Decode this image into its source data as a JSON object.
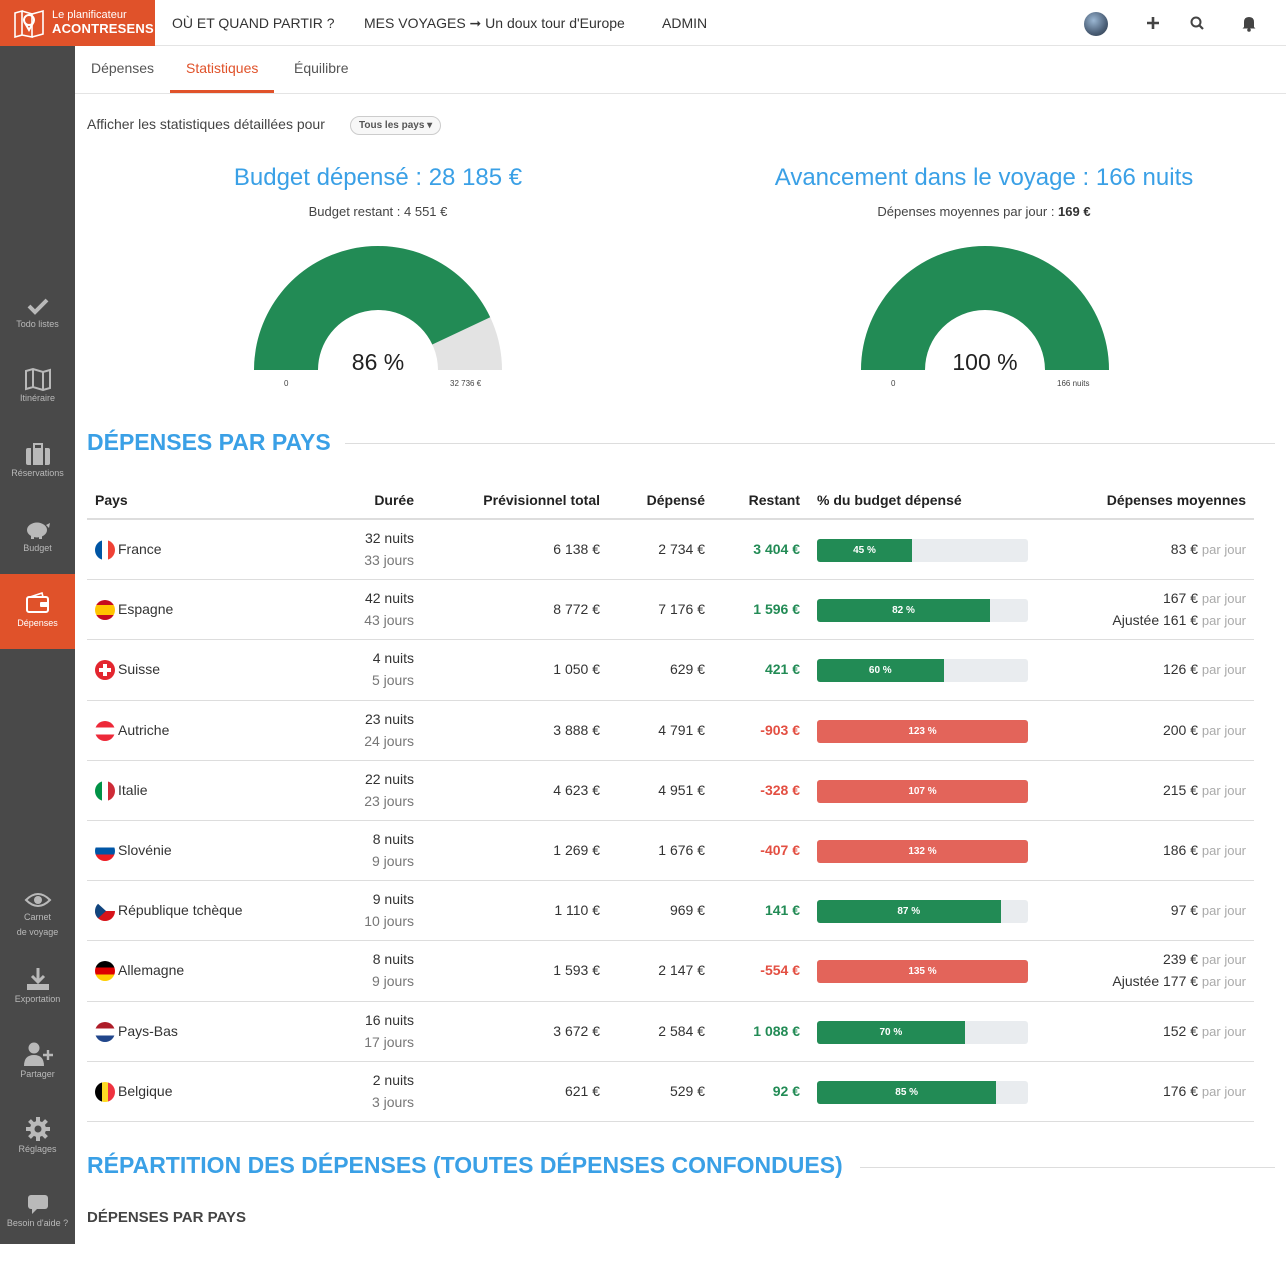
{
  "brand": {
    "line1": "Le planificateur",
    "line2": "ACONTRESENS",
    "color": "#e0522a"
  },
  "nav": {
    "where": "OÙ ET QUAND PARTIR ?",
    "trips": "MES VOYAGES ➞ Un doux tour d'Europe",
    "admin": "ADMIN"
  },
  "top_icons": [
    "avatar",
    "plus-icon",
    "search-icon",
    "bell-icon"
  ],
  "sidebar": [
    {
      "label": "Todo listes",
      "icon": "check-icon"
    },
    {
      "label": "Itinéraire",
      "icon": "map-icon"
    },
    {
      "label": "Réservations",
      "icon": "suitcase-icon"
    },
    {
      "label": "Budget",
      "icon": "piggy-bank-icon"
    },
    {
      "label": "Dépenses",
      "icon": "wallet-icon",
      "active": true
    },
    {
      "label": "Carnet de voyage",
      "icon": "eye-icon"
    },
    {
      "label": "Exportation",
      "icon": "download-icon"
    },
    {
      "label": "Partager",
      "icon": "add-user-icon"
    },
    {
      "label": "Réglages",
      "icon": "gear-icon"
    },
    {
      "label": "Besoin d'aide ?",
      "icon": "chat-icon"
    }
  ],
  "sidebar_labels": {
    "todo": "Todo listes",
    "itin": "Itinéraire",
    "resa": "Réservations",
    "budget": "Budget",
    "dep": "Dépenses",
    "carnet1": "Carnet",
    "carnet2": "de voyage",
    "export": "Exportation",
    "share": "Partager",
    "settings": "Réglages",
    "help": "Besoin d'aide ?"
  },
  "tabs": {
    "depenses": "Dépenses",
    "stats": "Statistiques",
    "equilibre": "Équilibre"
  },
  "filter": {
    "label": "Afficher les statistiques détaillées pour",
    "value": "Tous les pays ▾"
  },
  "budget": {
    "title": "Budget dépensé : 28 185 €",
    "sub": "Budget restant : 4 551 €",
    "gauge_pct": "86 %",
    "gauge_fraction": 0.86,
    "min": "0",
    "max": "32 736 €"
  },
  "progress": {
    "title": "Avancement dans le voyage : 166 nuits",
    "sub_label": "Dépenses moyennes par jour : ",
    "sub_value": "169 €",
    "gauge_pct": "100 %",
    "gauge_fraction": 1.0,
    "min": "0",
    "max": "166 nuits"
  },
  "colors": {
    "green": "#228b55",
    "red": "#e3645a",
    "blue": "#3aa0e6",
    "gauge_bg": "#e3e3e3"
  },
  "section1": "DÉPENSES PAR PAYS",
  "table_headers": {
    "pays": "Pays",
    "duree": "Durée",
    "prev": "Prévisionnel total",
    "dep": "Dépensé",
    "rest": "Restant",
    "pct": "% du budget dépensé",
    "avg": "Dépenses moyennes"
  },
  "per_day": "par jour",
  "rows": [
    {
      "country": "France",
      "flag": "france-flag",
      "nights": "32 nuits",
      "days": "33 jours",
      "prev": "6 138 €",
      "spent": "2 734 €",
      "rest": "3 404 €",
      "pos": true,
      "pct_label": "45 %",
      "pct": 45,
      "avg": "83 €",
      "adj": ""
    },
    {
      "country": "Espagne",
      "flag": "spain-flag",
      "nights": "42 nuits",
      "days": "43 jours",
      "prev": "8 772 €",
      "spent": "7 176 €",
      "rest": "1 596 €",
      "pos": true,
      "pct_label": "82 %",
      "pct": 82,
      "avg": "167 €",
      "adj": "Ajustée 161 €"
    },
    {
      "country": "Suisse",
      "flag": "switzerland-flag",
      "nights": "4 nuits",
      "days": "5 jours",
      "prev": "1 050 €",
      "spent": "629 €",
      "rest": "421 €",
      "pos": true,
      "pct_label": "60 %",
      "pct": 60,
      "avg": "126 €",
      "adj": ""
    },
    {
      "country": "Autriche",
      "flag": "austria-flag",
      "nights": "23 nuits",
      "days": "24 jours",
      "prev": "3 888 €",
      "spent": "4 791 €",
      "rest": "-903 €",
      "pos": false,
      "pct_label": "123 %",
      "pct": 123,
      "avg": "200 €",
      "adj": ""
    },
    {
      "country": "Italie",
      "flag": "italy-flag",
      "nights": "22 nuits",
      "days": "23 jours",
      "prev": "4 623 €",
      "spent": "4 951 €",
      "rest": "-328 €",
      "pos": false,
      "pct_label": "107 %",
      "pct": 107,
      "avg": "215 €",
      "adj": ""
    },
    {
      "country": "Slovénie",
      "flag": "slovenia-flag",
      "nights": "8 nuits",
      "days": "9 jours",
      "prev": "1 269 €",
      "spent": "1 676 €",
      "rest": "-407 €",
      "pos": false,
      "pct_label": "132 %",
      "pct": 132,
      "avg": "186 €",
      "adj": ""
    },
    {
      "country": "République tchèque",
      "flag": "czech-flag",
      "nights": "9 nuits",
      "days": "10 jours",
      "prev": "1 110 €",
      "spent": "969 €",
      "rest": "141 €",
      "pos": true,
      "pct_label": "87 %",
      "pct": 87,
      "avg": "97 €",
      "adj": ""
    },
    {
      "country": "Allemagne",
      "flag": "germany-flag",
      "nights": "8 nuits",
      "days": "9 jours",
      "prev": "1 593 €",
      "spent": "2 147 €",
      "rest": "-554 €",
      "pos": false,
      "pct_label": "135 %",
      "pct": 135,
      "avg": "239 €",
      "adj": "Ajustée 177 €"
    },
    {
      "country": "Pays-Bas",
      "flag": "netherlands-flag",
      "nights": "16 nuits",
      "days": "17 jours",
      "prev": "3 672 €",
      "spent": "2 584 €",
      "rest": "1 088 €",
      "pos": true,
      "pct_label": "70 %",
      "pct": 70,
      "avg": "152 €",
      "adj": ""
    },
    {
      "country": "Belgique",
      "flag": "belgium-flag",
      "nights": "2 nuits",
      "days": "3 jours",
      "prev": "621 €",
      "spent": "529 €",
      "rest": "92 €",
      "pos": true,
      "pct_label": "85 %",
      "pct": 85,
      "avg": "176 €",
      "adj": ""
    }
  ],
  "section2": "RÉPARTITION DES DÉPENSES (TOUTES DÉPENSES CONFONDUES)",
  "section3": "DÉPENSES PAR PAYS"
}
